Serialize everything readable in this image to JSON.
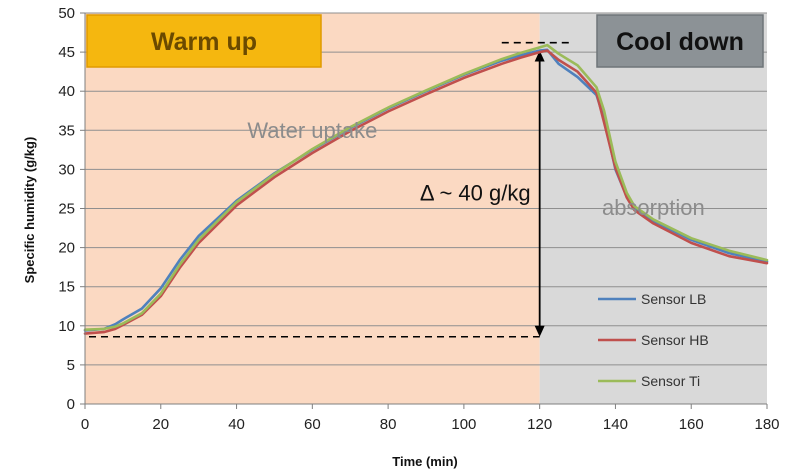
{
  "chart_data": {
    "type": "line",
    "title": "",
    "xlabel": "Time (min)",
    "ylabel": "Specific humidity (g/kg)",
    "xlim": [
      0,
      180
    ],
    "ylim": [
      0,
      50
    ],
    "xticks": [
      0,
      20,
      40,
      60,
      80,
      100,
      120,
      140,
      160,
      180
    ],
    "yticks": [
      0,
      5,
      10,
      15,
      20,
      25,
      30,
      35,
      40,
      45,
      50
    ],
    "xtick_labels": [
      "0",
      "20",
      "40",
      "60",
      "80",
      "100",
      "120",
      "140",
      "160",
      "180"
    ],
    "ytick_labels": [
      "0",
      "5",
      "10",
      "15",
      "20",
      "25",
      "30",
      "35",
      "40",
      "45",
      "50"
    ],
    "grid": true,
    "legend": "bottom-right",
    "phases": [
      {
        "label": "Warm up",
        "x_start": 0,
        "x_end": 120,
        "background": "#fbd9c2",
        "badge_color": "#f5b70f",
        "text_color": "#6b4a00"
      },
      {
        "label": "Cool down",
        "x_start": 120,
        "x_end": 180,
        "background": "#d9d9d9",
        "badge_color": "#8c9296",
        "text_color": "#111111"
      }
    ],
    "annotations": {
      "water_uptake": {
        "text": "Water uptake",
        "x": 60,
        "y": 34
      },
      "absorption": {
        "text": "absorption",
        "x": 150,
        "y": 24.2
      },
      "delta": {
        "text": "Δ ~ 40 g/kg",
        "x": 103,
        "y": 26
      },
      "arrow": {
        "x": 120,
        "y_from": 8.6,
        "y_to": 45.2
      },
      "dashed_low": {
        "x_from": 0,
        "x_to": 120,
        "y": 8.6
      },
      "dashed_high": {
        "x_from": 110,
        "x_to": 128,
        "y": 46.2
      }
    },
    "x": [
      0,
      5,
      8,
      10,
      15,
      20,
      25,
      30,
      40,
      50,
      60,
      70,
      80,
      90,
      100,
      110,
      115,
      120,
      122,
      125,
      130,
      135,
      137,
      140,
      143,
      145,
      150,
      160,
      170,
      180
    ],
    "series": [
      {
        "name": "Sensor LB",
        "color": "#4f81bd",
        "values": [
          9.4,
          9.6,
          10.2,
          10.8,
          12.2,
          14.8,
          18.4,
          21.5,
          26.0,
          29.5,
          32.5,
          35.3,
          37.8,
          40.0,
          42.1,
          43.9,
          44.6,
          45.2,
          45.3,
          43.5,
          41.8,
          39.5,
          36.5,
          30.0,
          26.5,
          25.0,
          23.4,
          21.0,
          19.3,
          18.2
        ]
      },
      {
        "name": "Sensor HB",
        "color": "#c0504d",
        "values": [
          9.0,
          9.2,
          9.6,
          10.1,
          11.4,
          13.8,
          17.4,
          20.6,
          25.4,
          29.0,
          32.1,
          34.9,
          37.4,
          39.6,
          41.7,
          43.5,
          44.3,
          45.0,
          45.2,
          44.0,
          42.5,
          39.8,
          36.0,
          30.2,
          26.4,
          24.8,
          23.1,
          20.6,
          18.9,
          18.0
        ]
      },
      {
        "name": "Sensor Ti",
        "color": "#9bbb59",
        "values": [
          9.5,
          9.6,
          9.9,
          10.3,
          11.6,
          14.1,
          17.8,
          21.0,
          25.8,
          29.4,
          32.6,
          35.4,
          37.9,
          40.1,
          42.2,
          44.1,
          44.9,
          45.6,
          45.9,
          44.8,
          43.3,
          40.5,
          37.5,
          31.0,
          27.0,
          25.3,
          23.6,
          21.2,
          19.6,
          18.4
        ]
      }
    ]
  }
}
